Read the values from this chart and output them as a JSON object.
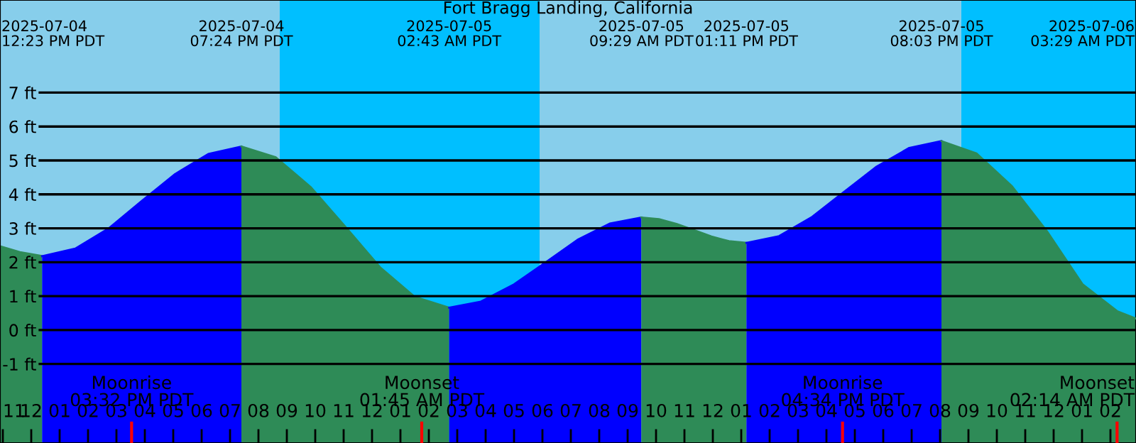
{
  "chart_data": {
    "type": "area",
    "title": "Fort Bragg Landing, California",
    "series": [
      {
        "color": "#2e8b57",
        "x": [
          "2025-07-04T10:54",
          "2025-07-04T11:36",
          "2025-07-04T12:23"
        ],
        "values": [
          2.47,
          2.3,
          2.18
        ]
      },
      {
        "color": "#0000ff",
        "x": [
          "2025-07-04T12:23",
          "2025-07-04T13:33",
          "2025-07-04T14:43",
          "2025-07-04T15:53",
          "2025-07-04T17:04",
          "2025-07-04T18:14",
          "2025-07-04T19:24"
        ],
        "values": [
          2.18,
          2.4,
          2.99,
          3.8,
          4.6,
          5.19,
          5.41
        ]
      },
      {
        "color": "#2e8b57",
        "x": [
          "2025-07-04T19:24",
          "2025-07-04T20:37",
          "2025-07-04T21:50",
          "2025-07-04T23:04",
          "2025-07-05T00:17",
          "2025-07-05T01:30",
          "2025-07-05T02:43"
        ],
        "values": [
          5.41,
          5.09,
          4.22,
          3.04,
          1.85,
          0.98,
          0.66
        ]
      },
      {
        "color": "#0000ff",
        "x": [
          "2025-07-05T02:43",
          "2025-07-05T03:50",
          "2025-07-05T04:58",
          "2025-07-05T06:06",
          "2025-07-05T07:14",
          "2025-07-05T08:22",
          "2025-07-05T09:29"
        ],
        "values": [
          0.66,
          0.84,
          1.33,
          1.99,
          2.66,
          3.14,
          3.32
        ]
      },
      {
        "color": "#2e8b57",
        "x": [
          "2025-07-05T09:29",
          "2025-07-05T10:06",
          "2025-07-05T10:43",
          "2025-07-05T11:20",
          "2025-07-05T11:57",
          "2025-07-05T12:34",
          "2025-07-05T13:11"
        ],
        "values": [
          3.32,
          3.27,
          3.13,
          2.95,
          2.76,
          2.62,
          2.57
        ]
      },
      {
        "color": "#0000ff",
        "x": [
          "2025-07-05T13:11",
          "2025-07-05T14:20",
          "2025-07-05T15:28",
          "2025-07-05T16:37",
          "2025-07-05T17:46",
          "2025-07-05T18:55",
          "2025-07-05T20:03"
        ],
        "values": [
          2.57,
          2.77,
          3.32,
          4.07,
          4.82,
          5.37,
          5.57
        ]
      },
      {
        "color": "#2e8b57",
        "x": [
          "2025-07-05T20:03",
          "2025-07-05T21:17",
          "2025-07-05T22:32",
          "2025-07-05T23:46",
          "2025-07-06T01:01",
          "2025-07-06T02:15",
          "2025-07-06T02:54"
        ],
        "values": [
          5.57,
          5.21,
          4.24,
          2.91,
          1.35,
          0.55,
          0.34
        ]
      }
    ],
    "xlim": [
      "2025-07-04T10:54",
      "2025-07-06T02:54"
    ],
    "ylim": [
      -3.33,
      9.73
    ],
    "xticks": [
      {
        "value": "2025-07-04T11:00",
        "label": "11"
      },
      {
        "value": "2025-07-04T12:00",
        "label": "12"
      },
      {
        "value": "2025-07-04T13:00",
        "label": "01"
      },
      {
        "value": "2025-07-04T14:00",
        "label": "02"
      },
      {
        "value": "2025-07-04T15:00",
        "label": "03"
      },
      {
        "value": "2025-07-04T16:00",
        "label": "04"
      },
      {
        "value": "2025-07-04T17:00",
        "label": "05"
      },
      {
        "value": "2025-07-04T18:00",
        "label": "06"
      },
      {
        "value": "2025-07-04T19:00",
        "label": "07"
      },
      {
        "value": "2025-07-04T20:00",
        "label": "08"
      },
      {
        "value": "2025-07-04T21:00",
        "label": "09"
      },
      {
        "value": "2025-07-04T22:00",
        "label": "10"
      },
      {
        "value": "2025-07-04T23:00",
        "label": "11"
      },
      {
        "value": "2025-07-05T00:00",
        "label": "12"
      },
      {
        "value": "2025-07-05T01:00",
        "label": "01"
      },
      {
        "value": "2025-07-05T02:00",
        "label": "02"
      },
      {
        "value": "2025-07-05T03:00",
        "label": "03"
      },
      {
        "value": "2025-07-05T04:00",
        "label": "04"
      },
      {
        "value": "2025-07-05T05:00",
        "label": "05"
      },
      {
        "value": "2025-07-05T06:00",
        "label": "06"
      },
      {
        "value": "2025-07-05T07:00",
        "label": "07"
      },
      {
        "value": "2025-07-05T08:00",
        "label": "08"
      },
      {
        "value": "2025-07-05T09:00",
        "label": "09"
      },
      {
        "value": "2025-07-05T10:00",
        "label": "10"
      },
      {
        "value": "2025-07-05T11:00",
        "label": "11"
      },
      {
        "value": "2025-07-05T12:00",
        "label": "12"
      },
      {
        "value": "2025-07-05T13:00",
        "label": "01"
      },
      {
        "value": "2025-07-05T14:00",
        "label": "02"
      },
      {
        "value": "2025-07-05T15:00",
        "label": "03"
      },
      {
        "value": "2025-07-05T16:00",
        "label": "04"
      },
      {
        "value": "2025-07-05T17:00",
        "label": "05"
      },
      {
        "value": "2025-07-05T18:00",
        "label": "06"
      },
      {
        "value": "2025-07-05T19:00",
        "label": "07"
      },
      {
        "value": "2025-07-05T20:00",
        "label": "08"
      },
      {
        "value": "2025-07-05T21:00",
        "label": "09"
      },
      {
        "value": "2025-07-05T22:00",
        "label": "10"
      },
      {
        "value": "2025-07-05T23:00",
        "label": "11"
      },
      {
        "value": "2025-07-06T00:00",
        "label": "12"
      },
      {
        "value": "2025-07-06T01:00",
        "label": "01"
      },
      {
        "value": "2025-07-06T02:00",
        "label": "02"
      }
    ],
    "yticks": [
      {
        "value": -1,
        "label": "-1 ft"
      },
      {
        "value": 0,
        "label": "0 ft"
      },
      {
        "value": 1,
        "label": "1 ft"
      },
      {
        "value": 2,
        "label": "2 ft"
      },
      {
        "value": 3,
        "label": "3 ft"
      },
      {
        "value": 4,
        "label": "4 ft"
      },
      {
        "value": 5,
        "label": "5 ft"
      },
      {
        "value": 6,
        "label": "6 ft"
      },
      {
        "value": 7,
        "label": "7 ft"
      }
    ],
    "grid": "y",
    "bands": [
      {
        "axis": "x",
        "from": "2025-07-04T10:54",
        "to": "2025-07-04T20:45",
        "color": "#87ceeb"
      },
      {
        "axis": "x",
        "from": "2025-07-04T20:45",
        "to": "2025-07-05T05:54",
        "color": "#00bfff"
      },
      {
        "axis": "x",
        "from": "2025-07-05T05:54",
        "to": "2025-07-05T20:45",
        "color": "#87ceeb"
      },
      {
        "axis": "x",
        "from": "2025-07-05T20:45",
        "to": "2025-07-06T02:54",
        "color": "#00bfff"
      }
    ],
    "ref_lines": [
      {
        "axis": "x",
        "value": "2025-07-04T15:32",
        "label": "Moonrise\n03:32 PM PDT",
        "color": "#ff0000"
      },
      {
        "axis": "x",
        "value": "2025-07-05T01:45",
        "label": "Moonset\n01:45 AM PDT",
        "color": "#ff0000"
      },
      {
        "axis": "x",
        "value": "2025-07-05T16:34",
        "label": "Moonrise\n04:34 PM PDT",
        "color": "#ff0000"
      },
      {
        "axis": "x",
        "value": "2025-07-06T02:14",
        "label": "Moonset\n02:14 AM PDT",
        "color": "#ff0000"
      }
    ],
    "annotations": [
      "2025-07-04\n12:23 PM PDT",
      "2025-07-04\n07:24 PM PDT",
      "2025-07-05\n02:43 AM PDT",
      "2025-07-05\n09:29 AM PDT",
      "2025-07-05\n01:11 PM PDT",
      "2025-07-05\n08:03 PM PDT",
      "2025-07-06\n03:29 AM PDT"
    ]
  }
}
